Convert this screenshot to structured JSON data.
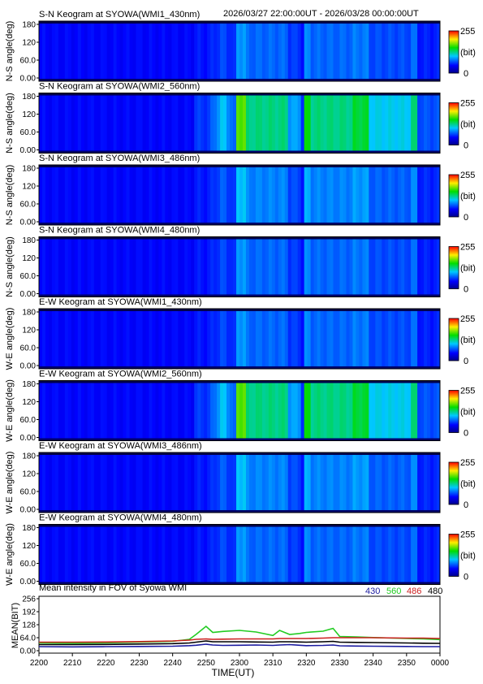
{
  "header": {
    "time_range": "2026/03/27 22:00:00UT - 2026/03/28 00:00:00UT"
  },
  "panel_y_ticks": [
    "180",
    "120",
    "60.0",
    "0.00"
  ],
  "colorbar": {
    "max_label": "255",
    "unit_label": "(bit)",
    "min_label": "0"
  },
  "keograms": [
    {
      "title": "S-N Keogram at SYOWA(WMI1_430nm)",
      "ylabel": "N-S angle(deg)",
      "intensity": 0.35
    },
    {
      "title": "S-N Keogram at SYOWA(WMI2_560nm)",
      "ylabel": "N-S angle(deg)",
      "intensity": 1.0
    },
    {
      "title": "S-N Keogram at SYOWA(WMI3_486nm)",
      "ylabel": "N-S angle(deg)",
      "intensity": 0.45
    },
    {
      "title": "S-N Keogram at SYOWA(WMI4_480nm)",
      "ylabel": "N-S angle(deg)",
      "intensity": 0.35
    },
    {
      "title": "E-W Keogram at SYOWA(WMI1_430nm)",
      "ylabel": "W-E angle(deg)",
      "intensity": 0.35
    },
    {
      "title": "E-W Keogram at SYOWA(WMI2_560nm)",
      "ylabel": "W-E angle(deg)",
      "intensity": 1.0
    },
    {
      "title": "E-W Keogram at SYOWA(WMI3_486nm)",
      "ylabel": "W-E angle(deg)",
      "intensity": 0.45
    },
    {
      "title": "E-W Keogram at SYOWA(WMI4_480nm)",
      "ylabel": "W-E angle(deg)",
      "intensity": 0.35
    }
  ],
  "colors": {
    "c430": "#1a1aa0",
    "c560": "#22cc22",
    "c486": "#cc2020",
    "c480": "#000000"
  },
  "chart_data": {
    "type": "line",
    "title": "Mean intensity in FOV of Syowa WMI",
    "xlabel": "TIME(UT)",
    "ylabel": "MEAN(BIT)",
    "y_ticks": [
      "256",
      "192",
      "128",
      "64.0",
      "0.00"
    ],
    "ylim": [
      0,
      256
    ],
    "x_ticks": [
      "2200",
      "2210",
      "2220",
      "2230",
      "2240",
      "2250",
      "2300",
      "2310",
      "2320",
      "2330",
      "2340",
      "2350",
      "0000"
    ],
    "x": [
      0,
      10,
      20,
      30,
      40,
      45,
      47,
      50,
      52,
      55,
      60,
      65,
      70,
      72,
      75,
      78,
      80,
      85,
      88,
      90,
      95,
      100,
      110,
      115,
      120
    ],
    "series": [
      {
        "name": "430",
        "color": "#1a1aa0",
        "values": [
          20,
          19,
          20,
          21,
          22,
          25,
          27,
          32,
          28,
          26,
          27,
          28,
          26,
          28,
          30,
          27,
          25,
          26,
          28,
          24,
          23,
          22,
          21,
          20,
          20
        ]
      },
      {
        "name": "560",
        "color": "#22cc22",
        "values": [
          38,
          37,
          39,
          42,
          46,
          56,
          80,
          120,
          90,
          95,
          100,
          92,
          75,
          100,
          80,
          85,
          90,
          96,
          110,
          70,
          68,
          65,
          60,
          58,
          55
        ]
      },
      {
        "name": "486",
        "color": "#cc2020",
        "values": [
          42,
          42,
          43,
          45,
          48,
          52,
          56,
          58,
          56,
          57,
          58,
          58,
          58,
          60,
          60,
          60,
          60,
          62,
          64,
          64,
          64,
          64,
          62,
          62,
          60
        ]
      },
      {
        "name": "480",
        "color": "#000000",
        "values": [
          30,
          30,
          31,
          33,
          35,
          38,
          42,
          48,
          44,
          44,
          44,
          43,
          42,
          44,
          44,
          43,
          42,
          44,
          46,
          42,
          41,
          40,
          38,
          37,
          36
        ]
      }
    ]
  }
}
